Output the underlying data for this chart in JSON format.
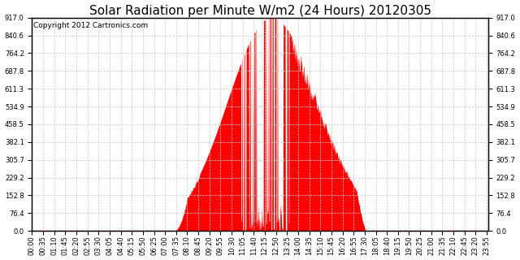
{
  "title": "Solar Radiation per Minute W/m2 (24 Hours) 20120305",
  "copyright": "Copyright 2012 Cartronics.com",
  "background_color": "#ffffff",
  "plot_bg_color": "#ffffff",
  "fill_color": "#ff0000",
  "dashed_line_color": "#ff0000",
  "grid_color": "#c8c8c8",
  "ylim": [
    0.0,
    917.0
  ],
  "yticks": [
    0.0,
    76.4,
    152.8,
    229.2,
    305.7,
    382.1,
    458.5,
    534.9,
    611.3,
    687.8,
    764.2,
    840.6,
    917.0
  ],
  "title_fontsize": 11,
  "copyright_fontsize": 6.5,
  "tick_fontsize": 6,
  "total_minutes": 1440,
  "sunrise": 450,
  "sunset": 1055,
  "peak_minute": 755
}
